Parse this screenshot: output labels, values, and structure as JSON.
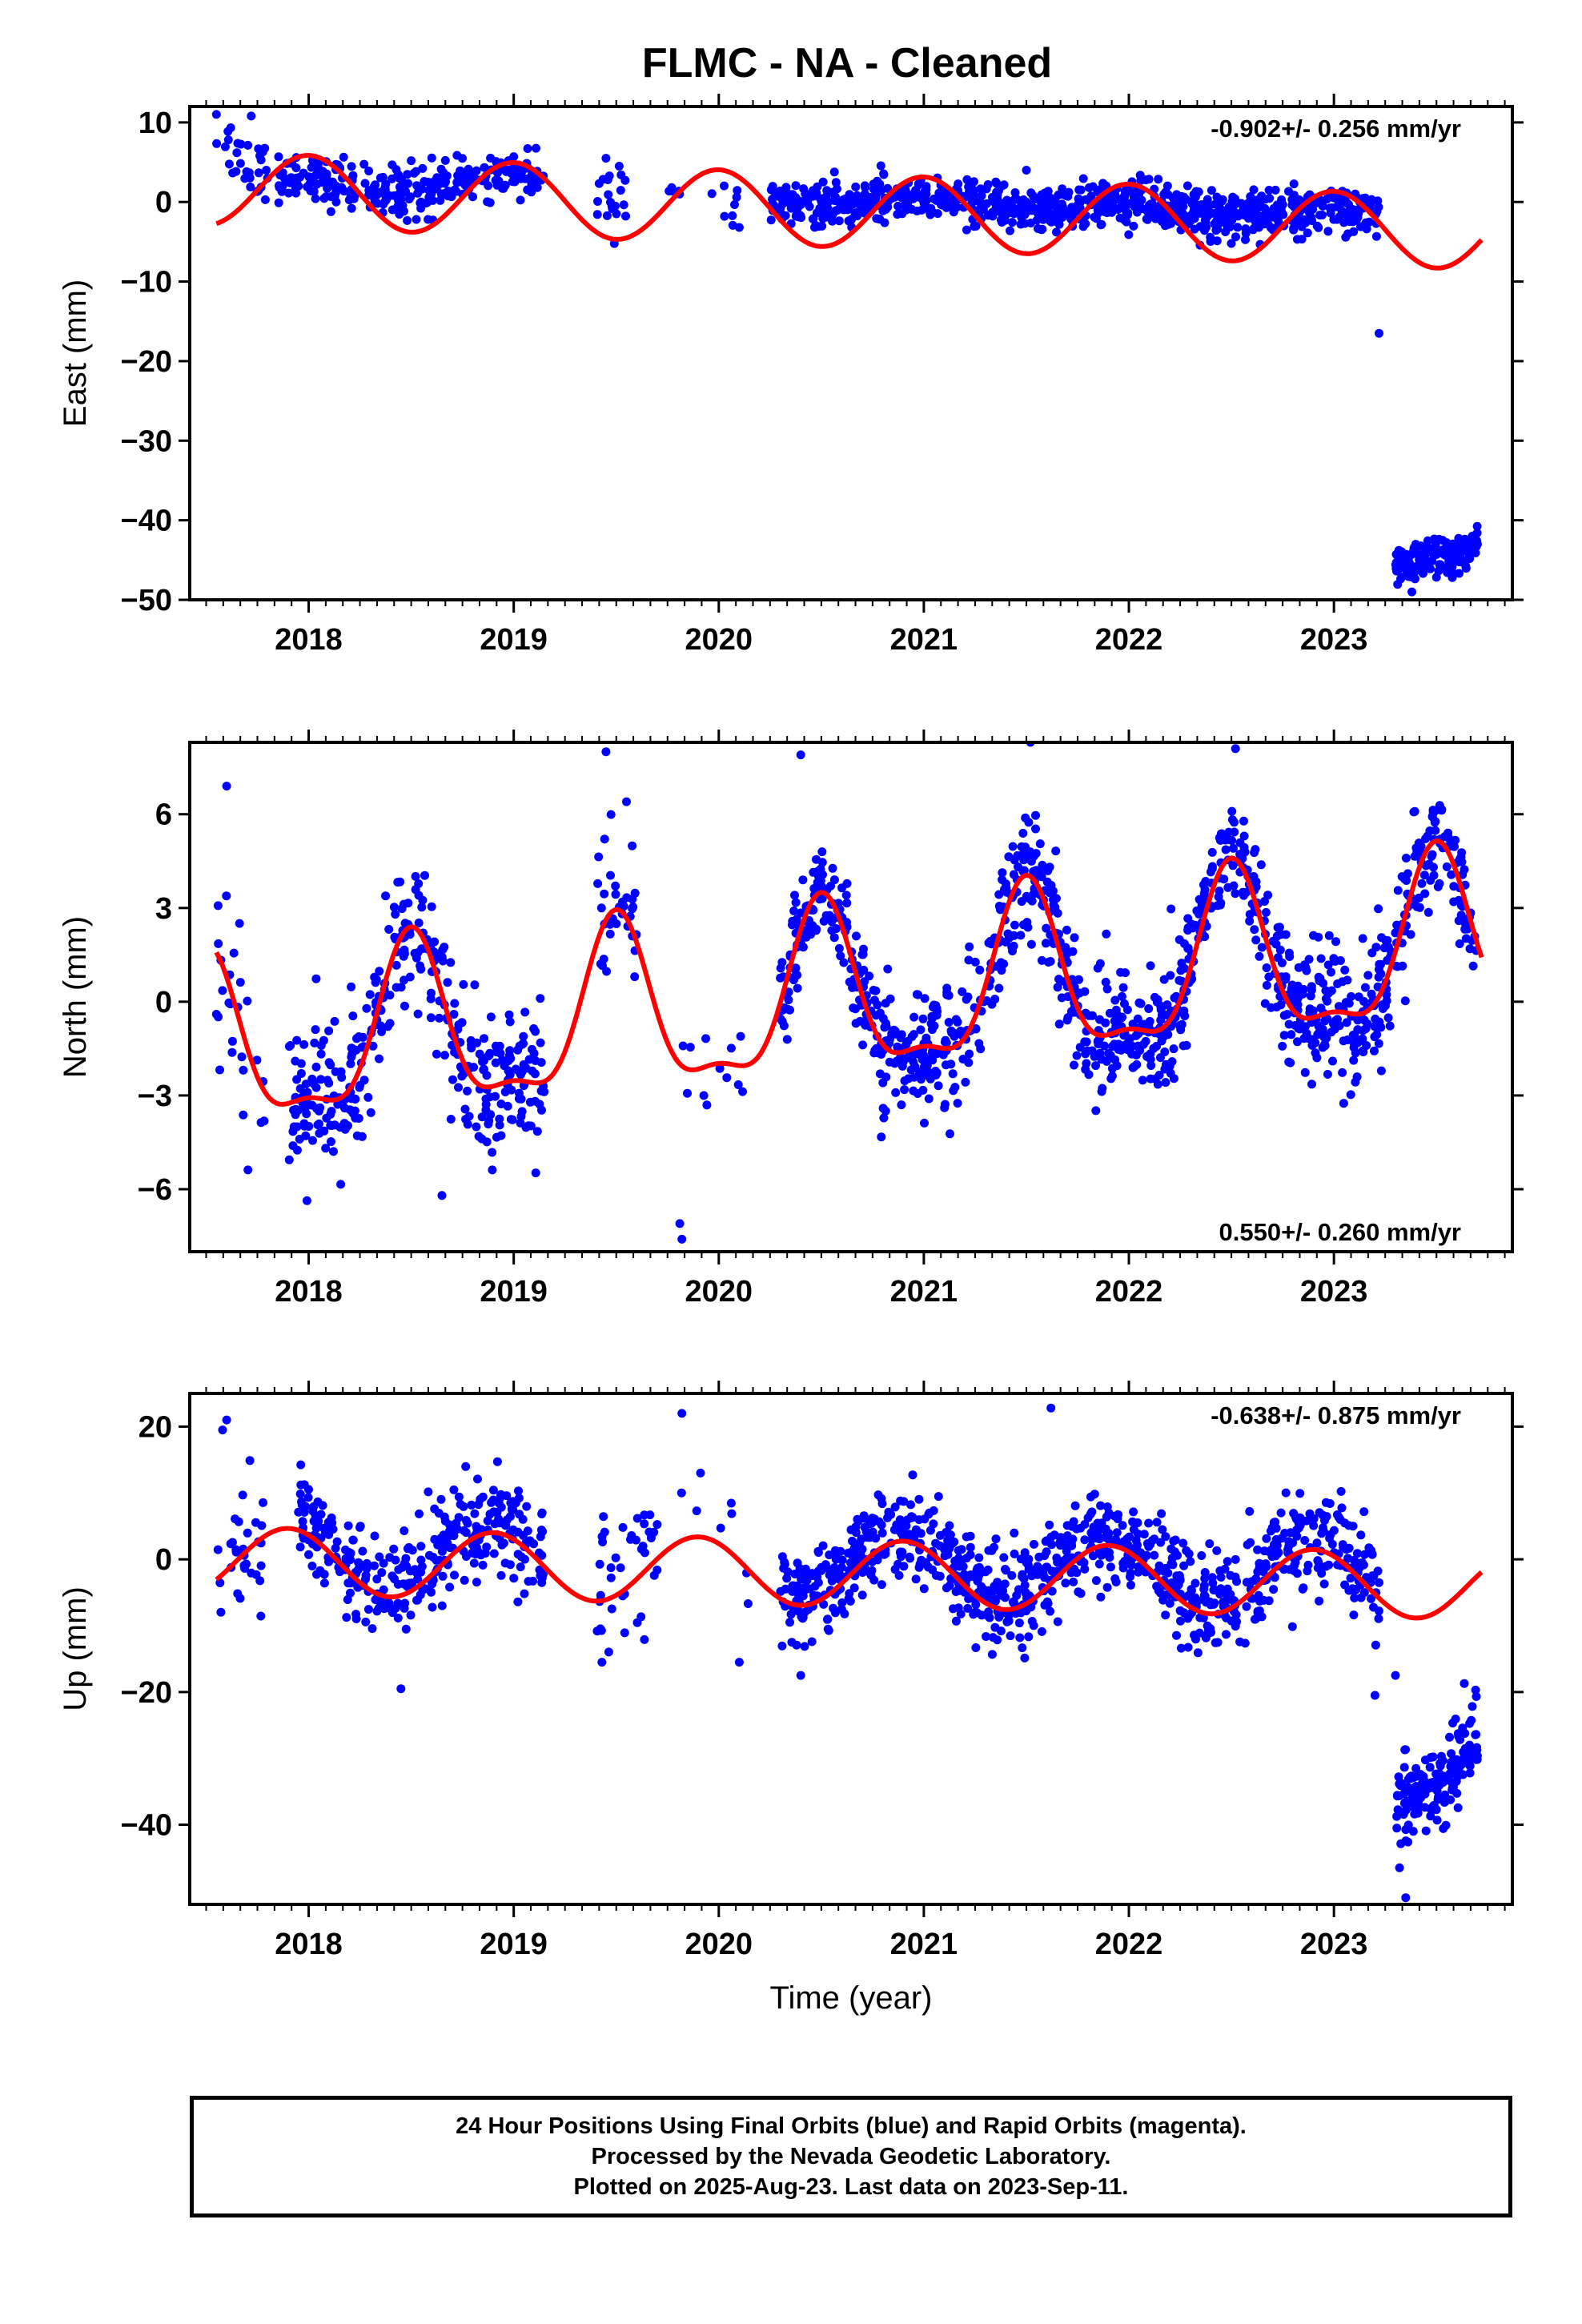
{
  "title": "FLMC  - NA - Cleaned",
  "caption": {
    "line1": "24 Hour Positions Using Final Orbits (blue) and Rapid Orbits (magenta).",
    "line2": "Processed by the Nevada Geodetic Laboratory.",
    "line3": "Plotted on 2025-Aug-23. Last data on 2023-Sep-11."
  },
  "colors": {
    "points": "#0000ff",
    "fit": "#ff0000",
    "frame": "#000000",
    "background": "#ffffff"
  },
  "chart_data": [
    {
      "type": "scatter",
      "id": "east",
      "ylabel": "East (mm)",
      "xlabel": "",
      "rate_text": "-0.902+/- 0.256 mm/yr",
      "rate_position": "top-right",
      "xlim": [
        2017.42,
        2023.87
      ],
      "ylim": [
        -50,
        12
      ],
      "yticks": [
        10,
        0,
        -10,
        -20,
        -30,
        -40,
        -50
      ],
      "ytick_labels": [
        "10",
        "0",
        "−10",
        "−20",
        "−30",
        "−40",
        "−50"
      ],
      "xticks": [
        2018,
        2019,
        2020,
        2021,
        2022,
        2023
      ],
      "xtick_labels": [
        "2018",
        "2019",
        "2020",
        "2021",
        "2022",
        "2023"
      ],
      "fit_model": {
        "intercept": -1.0,
        "rate": -0.902,
        "ref_year": 2020.5,
        "annual_amplitude": 4.6,
        "annual_peak": 2020.0
      },
      "fit_x_range": [
        2017.55,
        2023.72
      ],
      "series": [
        {
          "label": "final orbits",
          "segments": [
            {
              "x0": 2017.55,
              "x1": 2017.8,
              "n": 30,
              "base": 8.0,
              "slope": -20,
              "spread": 3.0
            },
            {
              "x0": 2017.85,
              "x1": 2018.6,
              "n": 160,
              "base": 2.4,
              "slope": 0,
              "spread": 2.2
            },
            {
              "x0": 2018.6,
              "x1": 2019.15,
              "n": 120,
              "base": 2.1,
              "slope": 0,
              "spread": 1.8
            },
            {
              "x0": 2019.4,
              "x1": 2019.55,
              "n": 20,
              "base": 1.0,
              "slope": 0,
              "spread": 3.0
            },
            {
              "x0": 2019.75,
              "x1": 2019.85,
              "n": 5,
              "base": 1.5,
              "slope": 0,
              "spread": 1.0
            },
            {
              "x0": 2019.95,
              "x1": 2020.1,
              "n": 8,
              "base": -1.0,
              "slope": 0,
              "spread": 2.5
            },
            {
              "x0": 2020.25,
              "x1": 2023.22,
              "n": 900,
              "base": 0.3,
              "slope": -0.5,
              "spread": 2.0
            },
            {
              "x0": 2023.3,
              "x1": 2023.7,
              "n": 180,
              "base": -45.5,
              "slope": 6,
              "spread": 1.6
            }
          ]
        }
      ],
      "extra_points": [
        [
          2017.55,
          11.0
        ],
        [
          2017.72,
          10.8
        ],
        [
          2023.22,
          -16.5
        ],
        [
          2023.38,
          -49.0
        ],
        [
          2020.1,
          -3.2
        ],
        [
          2018.5,
          5.2
        ],
        [
          2021.5,
          4.0
        ],
        [
          2019.45,
          5.5
        ]
      ]
    },
    {
      "type": "scatter",
      "id": "north",
      "ylabel": "North (mm)",
      "xlabel": "",
      "rate_text": "0.550+/- 0.260 mm/yr",
      "rate_position": "bottom-right",
      "xlim": [
        2017.42,
        2023.87
      ],
      "ylim": [
        -8,
        8.3
      ],
      "yticks": [
        6,
        3,
        0,
        -3,
        -6
      ],
      "ytick_labels": [
        "6",
        "3",
        "0",
        "−3",
        "−6"
      ],
      "xticks": [
        2018,
        2019,
        2020,
        2021,
        2022,
        2023
      ],
      "xtick_labels": [
        "2018",
        "2019",
        "2020",
        "2021",
        "2022",
        "2023"
      ],
      "fit_model": {
        "intercept": 0.0,
        "rate": 0.55,
        "ref_year": 2020.5,
        "annual_amplitude": 2.6,
        "annual_peak": 2020.5,
        "semiannual_amplitude": 0.9,
        "semiannual_peak": 2020.5
      },
      "fit_x_range": [
        2017.55,
        2023.72
      ],
      "series": [
        {
          "label": "final orbits",
          "segments": [
            {
              "x0": 2017.55,
              "x1": 2017.8,
              "n": 25,
              "base": 2.0,
              "slope": -5,
              "spread": 2.5
            },
            {
              "x0": 2017.9,
              "x1": 2019.15,
              "n": 360,
              "base": 0.0,
              "slope": 0,
              "spread": 1.6
            },
            {
              "x0": 2019.4,
              "x1": 2019.6,
              "n": 35,
              "base": 3.0,
              "slope": 0,
              "spread": 2.2
            },
            {
              "x0": 2019.75,
              "x1": 2020.15,
              "n": 12,
              "base": -2.0,
              "slope": 0,
              "spread": 1.8
            },
            {
              "x0": 2020.3,
              "x1": 2023.7,
              "n": 1100,
              "base": 0.0,
              "slope": 0,
              "spread": 1.4
            }
          ]
        }
      ],
      "extra_points": [
        [
          2017.6,
          6.9
        ],
        [
          2019.45,
          8.0
        ],
        [
          2019.55,
          6.4
        ],
        [
          2019.82,
          -7.6
        ],
        [
          2019.81,
          -7.1
        ],
        [
          2020.4,
          7.9
        ],
        [
          2021.52,
          8.3
        ],
        [
          2022.52,
          8.1
        ],
        [
          2018.65,
          -6.2
        ],
        [
          2017.55,
          -0.4
        ]
      ]
    },
    {
      "type": "scatter",
      "id": "up",
      "ylabel": "Up (mm)",
      "xlabel": "Time (year)",
      "rate_text": "-0.638+/- 0.875 mm/yr",
      "rate_position": "top-right",
      "xlim": [
        2017.42,
        2023.87
      ],
      "ylim": [
        -52,
        25
      ],
      "yticks": [
        20,
        0,
        -20,
        -40
      ],
      "ytick_labels": [
        "20",
        "0",
        "−20",
        "−40"
      ],
      "xticks": [
        2018,
        2019,
        2020,
        2021,
        2022,
        2023
      ],
      "xtick_labels": [
        "2018",
        "2019",
        "2020",
        "2021",
        "2022",
        "2023"
      ],
      "fit_model": {
        "intercept": -2.0,
        "rate": -0.638,
        "ref_year": 2020.5,
        "annual_amplitude": 5.0,
        "annual_peak": 2019.9
      },
      "fit_x_range": [
        2017.55,
        2023.72
      ],
      "series": [
        {
          "label": "final orbits",
          "segments": [
            {
              "x0": 2017.55,
              "x1": 2017.8,
              "n": 30,
              "base": 6.0,
              "slope": 0,
              "spread": 6.0
            },
            {
              "x0": 2017.95,
              "x1": 2019.15,
              "n": 330,
              "base": 2.0,
              "slope": 0,
              "spread": 4.5
            },
            {
              "x0": 2019.4,
              "x1": 2019.7,
              "n": 40,
              "base": 2.0,
              "slope": 0,
              "spread": 7.0
            },
            {
              "x0": 2019.8,
              "x1": 2020.15,
              "n": 8,
              "base": -3.0,
              "slope": 0,
              "spread": 6.0
            },
            {
              "x0": 2020.3,
              "x1": 2023.22,
              "n": 900,
              "base": -1.0,
              "slope": 0,
              "spread": 4.5
            },
            {
              "x0": 2023.3,
              "x1": 2023.7,
              "n": 170,
              "base": -37.0,
              "slope": 15,
              "spread": 4.0
            }
          ]
        }
      ],
      "extra_points": [
        [
          2017.6,
          21.0
        ],
        [
          2017.58,
          19.5
        ],
        [
          2019.82,
          22.0
        ],
        [
          2021.62,
          22.8
        ],
        [
          2018.45,
          -19.5
        ],
        [
          2019.43,
          -15.5
        ],
        [
          2020.1,
          -15.5
        ],
        [
          2020.4,
          -17.5
        ],
        [
          2023.35,
          -51.0
        ],
        [
          2023.3,
          -17.5
        ],
        [
          2023.2,
          -20.5
        ],
        [
          2023.32,
          -46.5
        ]
      ]
    }
  ]
}
